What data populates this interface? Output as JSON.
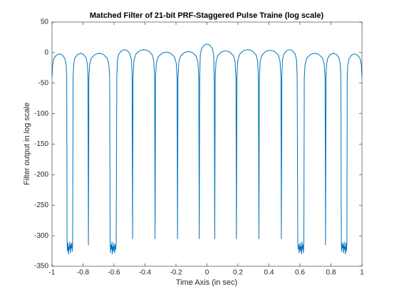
{
  "chart_data": {
    "type": "line",
    "title": "Matched Filter of 21-bit PRF-Staggered Pulse Traine (log scale)",
    "x_label": "Time Axis (in sec)",
    "y_label": "Filter output in log scale",
    "color": "#0072bd",
    "xlim": [
      -1,
      1
    ],
    "xticks": [
      -1,
      -0.8,
      -0.6,
      -0.4,
      -0.2,
      0,
      0.2,
      0.4,
      0.6,
      0.8,
      1
    ],
    "ylim": [
      -350,
      50
    ],
    "yticks": [
      -350,
      -300,
      -250,
      -200,
      -150,
      -100,
      -50,
      0,
      50
    ],
    "x": [
      -1,
      -0.9962,
      -0.9886,
      -0.9715,
      -0.9525,
      -0.9335,
      -0.9164,
      -0.9088,
      -0.905,
      -0.903,
      -0.9,
      -0.897,
      -0.894,
      -0.891,
      -0.888,
      -0.885,
      -0.882,
      -0.879,
      -0.876,
      -0.873,
      -0.87,
      -0.867,
      -0.864,
      -0.8602,
      -0.8525,
      -0.8352,
      -0.816,
      -0.7968,
      -0.7795,
      -0.7718,
      -0.768,
      -0.765,
      -0.762,
      -0.7566,
      -0.7459,
      -0.7218,
      -0.695,
      -0.6682,
      -0.6441,
      -0.6334,
      -0.628,
      -0.625,
      -0.622,
      -0.619,
      -0.616,
      -0.613,
      -0.61,
      -0.607,
      -0.604,
      -0.601,
      -0.598,
      -0.595,
      -0.592,
      -0.589,
      -0.586,
      -0.582,
      -0.578,
      -0.5701,
      -0.5523,
      -0.5325,
      -0.5127,
      -0.4949,
      -0.487,
      -0.483,
      -0.48,
      -0.477,
      -0.4714,
      -0.4603,
      -0.4353,
      -0.4075,
      -0.3797,
      -0.3547,
      -0.3436,
      -0.338,
      -0.335,
      -0.332,
      -0.3264,
      -0.3153,
      -0.2903,
      -0.2625,
      -0.2347,
      -0.2097,
      -0.1986,
      -0.193,
      -0.19,
      -0.187,
      -0.1816,
      -0.1709,
      -0.1468,
      -0.12,
      -0.0932,
      -0.0691,
      -0.0584,
      -0.053,
      -0.05,
      -0.047,
      -0.0432,
      -0.0357,
      -0.0188,
      0,
      0.0188,
      0.0357,
      0.0432,
      0.047,
      0.05,
      0.053,
      0.0584,
      0.0691,
      0.0932,
      0.12,
      0.1468,
      0.1709,
      0.1816,
      0.187,
      0.19,
      0.193,
      0.1986,
      0.2097,
      0.2347,
      0.2625,
      0.2903,
      0.3153,
      0.3264,
      0.332,
      0.335,
      0.338,
      0.3436,
      0.3547,
      0.3797,
      0.4075,
      0.4353,
      0.4603,
      0.4714,
      0.477,
      0.48,
      0.483,
      0.487,
      0.4949,
      0.5127,
      0.5325,
      0.5523,
      0.5701,
      0.578,
      0.582,
      0.586,
      0.589,
      0.592,
      0.595,
      0.598,
      0.601,
      0.604,
      0.607,
      0.61,
      0.613,
      0.616,
      0.619,
      0.622,
      0.625,
      0.628,
      0.6334,
      0.6441,
      0.6682,
      0.695,
      0.7218,
      0.7459,
      0.7566,
      0.762,
      0.765,
      0.768,
      0.7718,
      0.7795,
      0.7968,
      0.816,
      0.8352,
      0.8525,
      0.8602,
      0.864,
      0.867,
      0.87,
      0.873,
      0.876,
      0.879,
      0.882,
      0.885,
      0.888,
      0.891,
      0.894,
      0.897,
      0.9,
      0.903,
      0.905,
      0.9088,
      0.9164,
      0.9335,
      0.9525,
      0.9715,
      0.9886,
      0.9962,
      1
    ],
    "values": [
      -40,
      -20,
      -10,
      -4,
      -2,
      -4,
      -10,
      -20,
      -40,
      -310,
      -325,
      -312,
      -330,
      -318,
      -322,
      -310,
      -328,
      -315,
      -320,
      -312,
      -326,
      -314,
      -40,
      -19,
      -9,
      -3,
      -1,
      -3,
      -9,
      -19,
      -40,
      -315,
      -40,
      -19,
      -9,
      -3,
      -1,
      -3,
      -9,
      -19,
      -40,
      -312,
      -328,
      -315,
      -322,
      -310,
      -330,
      -318,
      -325,
      -312,
      -320,
      -328,
      -315,
      -322,
      -310,
      -40,
      -13,
      -3,
      3,
      5,
      3,
      -3,
      -13,
      -40,
      -305,
      -40,
      -13,
      -3,
      3,
      5,
      3,
      -3,
      -13,
      -40,
      -305,
      -40,
      -17,
      -7,
      -1,
      1,
      -1,
      -7,
      -17,
      -40,
      -305,
      -40,
      -16,
      -6,
      0,
      2,
      0,
      -6,
      -16,
      -40,
      -305,
      -40,
      -4,
      6,
      12,
      14,
      12,
      6,
      -4,
      -40,
      -305,
      -40,
      -15,
      -5,
      1,
      3,
      1,
      -5,
      -15,
      -40,
      -305,
      -40,
      -13,
      -3,
      3,
      5,
      3,
      -3,
      -13,
      -40,
      -305,
      -40,
      -14,
      -4,
      2,
      4,
      2,
      -4,
      -14,
      -40,
      -305,
      -40,
      -13,
      -3,
      3,
      5,
      3,
      -3,
      -13,
      -40,
      -310,
      -322,
      -315,
      -328,
      -320,
      -312,
      -325,
      -318,
      -330,
      -310,
      -322,
      -315,
      -328,
      -312,
      -40,
      -19,
      -9,
      -3,
      -1,
      -3,
      -9,
      -19,
      -40,
      -315,
      -40,
      -19,
      -9,
      -3,
      -1,
      -3,
      -9,
      -19,
      -40,
      -314,
      -326,
      -312,
      -320,
      -315,
      -328,
      -310,
      -322,
      -318,
      -330,
      -312,
      -325,
      -310,
      -40,
      -20,
      -10,
      -4,
      -2,
      -4,
      -10,
      -20,
      -40
    ]
  }
}
